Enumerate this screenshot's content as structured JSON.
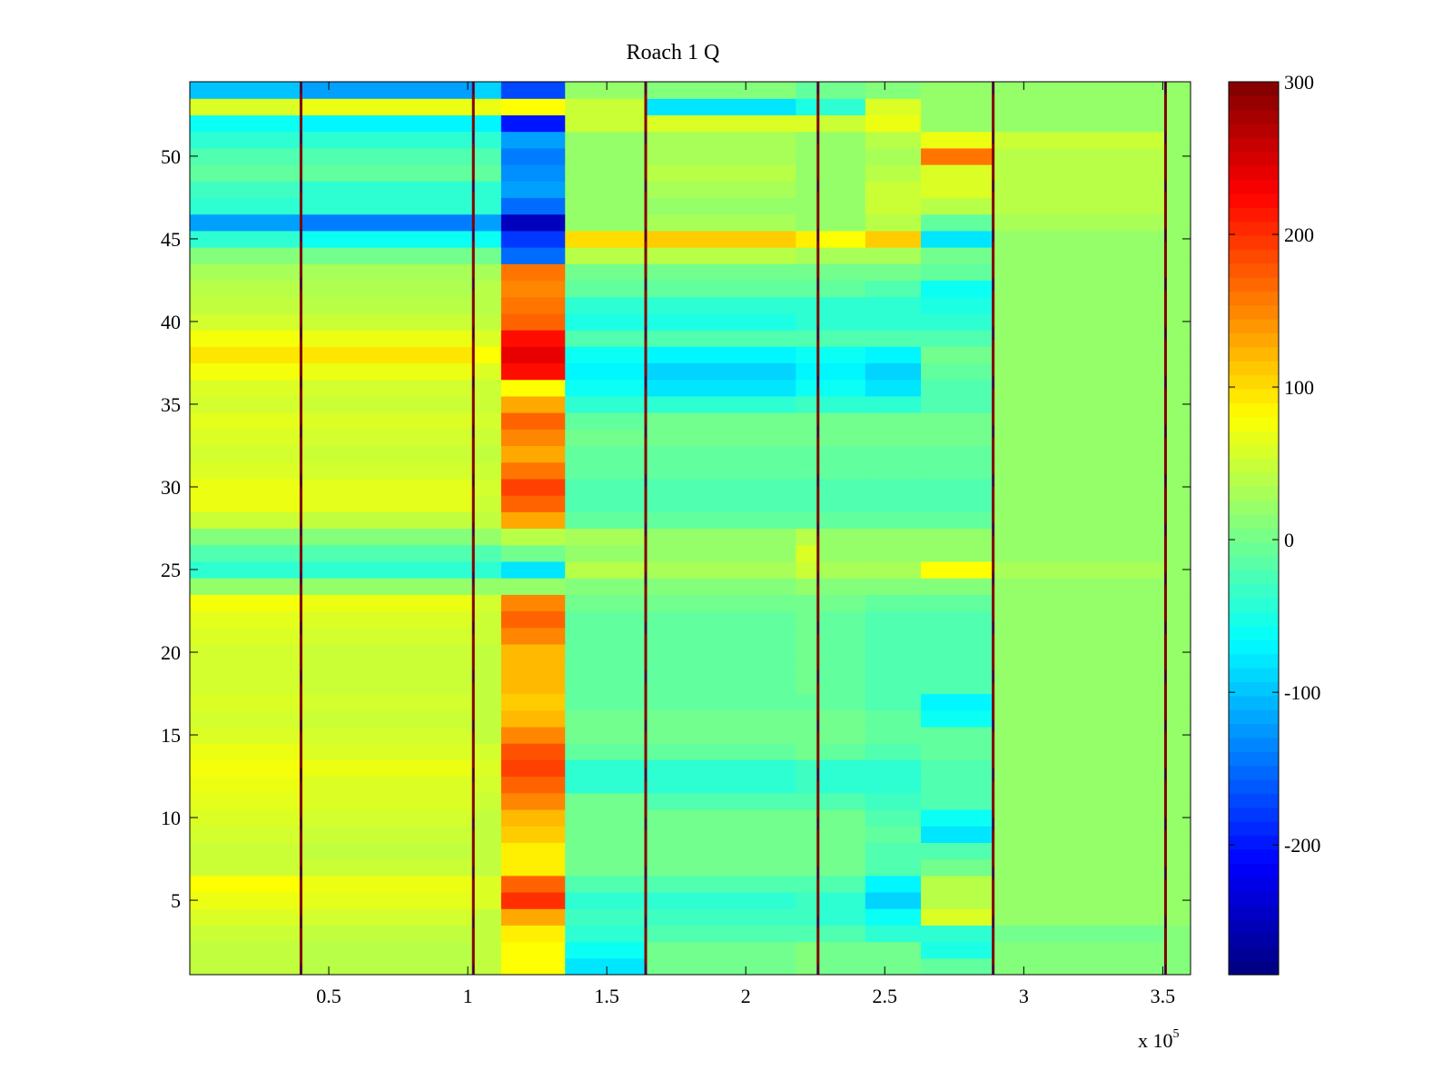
{
  "chart_data": {
    "type": "heatmap",
    "title": "Roach 1 Q",
    "xlabel": "",
    "ylabel": "",
    "x_multiplier": {
      "base": "x 10",
      "exponent": "5"
    },
    "xlim": [
      0,
      360000
    ],
    "ylim": [
      0.5,
      54.5
    ],
    "x_ticks": [
      {
        "value": 50000,
        "label": "0.5"
      },
      {
        "value": 100000,
        "label": "1"
      },
      {
        "value": 150000,
        "label": "1.5"
      },
      {
        "value": 200000,
        "label": "2"
      },
      {
        "value": 250000,
        "label": "2.5"
      },
      {
        "value": 300000,
        "label": "3"
      },
      {
        "value": 350000,
        "label": "3.5"
      }
    ],
    "y_ticks": [
      {
        "value": 5,
        "label": "5"
      },
      {
        "value": 10,
        "label": "10"
      },
      {
        "value": 15,
        "label": "15"
      },
      {
        "value": 20,
        "label": "20"
      },
      {
        "value": 25,
        "label": "25"
      },
      {
        "value": 30,
        "label": "30"
      },
      {
        "value": 35,
        "label": "35"
      },
      {
        "value": 40,
        "label": "40"
      },
      {
        "value": 45,
        "label": "45"
      },
      {
        "value": 50,
        "label": "50"
      }
    ],
    "colorbar": {
      "colormap": "jet",
      "clim": [
        -285,
        300
      ],
      "ticks": [
        {
          "value": 300,
          "label": "300"
        },
        {
          "value": 200,
          "label": "200"
        },
        {
          "value": 100,
          "label": "100"
        },
        {
          "value": 0,
          "label": "0"
        },
        {
          "value": -100,
          "label": "-100"
        },
        {
          "value": -200,
          "label": "-200"
        }
      ]
    },
    "segments": [
      {
        "x_start": 0,
        "x_end": 40000
      },
      {
        "x_start": 40000,
        "x_end": 102000
      },
      {
        "x_start": 102000,
        "x_end": 112000
      },
      {
        "x_start": 112000,
        "x_end": 135000
      },
      {
        "x_start": 135000,
        "x_end": 164000
      },
      {
        "x_start": 164000,
        "x_end": 218000
      },
      {
        "x_start": 218000,
        "x_end": 226000
      },
      {
        "x_start": 226000,
        "x_end": 243000
      },
      {
        "x_start": 243000,
        "x_end": 263000
      },
      {
        "x_start": 263000,
        "x_end": 289000
      },
      {
        "x_start": 289000,
        "x_end": 351000
      },
      {
        "x_start": 351000,
        "x_end": 360000
      }
    ],
    "row_values": [
      [
        45,
        40,
        45,
        80,
        -80,
        0,
        10,
        0,
        0,
        -10,
        10,
        10
      ],
      [
        45,
        40,
        45,
        80,
        -60,
        0,
        10,
        0,
        0,
        -50,
        10,
        10
      ],
      [
        50,
        45,
        45,
        90,
        -40,
        -20,
        -20,
        -20,
        -40,
        -40,
        0,
        10
      ],
      [
        60,
        55,
        45,
        130,
        -30,
        -30,
        -30,
        -40,
        -60,
        60,
        20,
        20
      ],
      [
        70,
        65,
        60,
        200,
        -40,
        -40,
        -30,
        -40,
        -90,
        40,
        20,
        20
      ],
      [
        80,
        70,
        60,
        170,
        -20,
        -20,
        -20,
        -20,
        -70,
        40,
        20,
        20
      ],
      [
        50,
        50,
        45,
        90,
        0,
        0,
        0,
        0,
        -20,
        0,
        20,
        20
      ],
      [
        50,
        45,
        45,
        90,
        0,
        0,
        0,
        0,
        -20,
        -20,
        20,
        20
      ],
      [
        55,
        50,
        45,
        110,
        0,
        0,
        0,
        0,
        -10,
        -80,
        20,
        20
      ],
      [
        60,
        55,
        45,
        120,
        0,
        0,
        0,
        0,
        -20,
        -60,
        20,
        20
      ],
      [
        65,
        60,
        50,
        150,
        0,
        -20,
        -20,
        -20,
        -30,
        -20,
        20,
        20
      ],
      [
        70,
        60,
        55,
        170,
        -40,
        -40,
        -30,
        -40,
        -40,
        -20,
        20,
        20
      ],
      [
        75,
        70,
        60,
        190,
        -40,
        -40,
        -30,
        -40,
        -40,
        -20,
        20,
        20
      ],
      [
        70,
        60,
        55,
        180,
        -10,
        -10,
        0,
        -10,
        -20,
        -10,
        20,
        20
      ],
      [
        60,
        55,
        45,
        150,
        0,
        0,
        0,
        0,
        -10,
        -10,
        20,
        20
      ],
      [
        55,
        50,
        45,
        120,
        0,
        0,
        0,
        0,
        -10,
        -60,
        20,
        20
      ],
      [
        60,
        55,
        45,
        110,
        -10,
        -10,
        -10,
        -10,
        -20,
        -70,
        20,
        20
      ],
      [
        55,
        50,
        45,
        120,
        -10,
        -10,
        0,
        -10,
        -20,
        -20,
        20,
        20
      ],
      [
        55,
        50,
        45,
        120,
        -10,
        -10,
        0,
        -10,
        -20,
        -20,
        20,
        20
      ],
      [
        55,
        50,
        45,
        120,
        -10,
        -10,
        0,
        -10,
        -20,
        -20,
        20,
        20
      ],
      [
        60,
        55,
        50,
        150,
        -10,
        -10,
        0,
        -10,
        -20,
        -20,
        20,
        20
      ],
      [
        65,
        60,
        50,
        170,
        -10,
        -10,
        0,
        -10,
        -20,
        -20,
        20,
        20
      ],
      [
        75,
        70,
        55,
        150,
        0,
        0,
        0,
        0,
        -10,
        -10,
        20,
        20
      ],
      [
        20,
        20,
        20,
        20,
        10,
        10,
        20,
        10,
        10,
        10,
        20,
        20
      ],
      [
        -40,
        -40,
        -40,
        -80,
        40,
        30,
        50,
        30,
        30,
        80,
        30,
        20
      ],
      [
        -20,
        -20,
        -20,
        0,
        20,
        20,
        60,
        20,
        20,
        20,
        20,
        20
      ],
      [
        10,
        10,
        20,
        40,
        30,
        20,
        40,
        20,
        20,
        20,
        20,
        20
      ],
      [
        50,
        45,
        45,
        130,
        -10,
        -10,
        -10,
        -10,
        -10,
        -10,
        20,
        20
      ],
      [
        70,
        65,
        50,
        170,
        -20,
        -20,
        -20,
        -20,
        -20,
        -20,
        20,
        20
      ],
      [
        70,
        65,
        55,
        190,
        -20,
        -20,
        -20,
        -20,
        -20,
        -20,
        20,
        20
      ],
      [
        60,
        55,
        50,
        160,
        -10,
        -10,
        -10,
        -10,
        -10,
        -10,
        20,
        20
      ],
      [
        55,
        50,
        45,
        130,
        -10,
        -10,
        -10,
        -10,
        -10,
        -10,
        20,
        20
      ],
      [
        60,
        55,
        50,
        150,
        0,
        0,
        0,
        0,
        0,
        0,
        20,
        20
      ],
      [
        65,
        60,
        55,
        170,
        -10,
        0,
        0,
        0,
        0,
        0,
        20,
        20
      ],
      [
        55,
        50,
        50,
        130,
        -40,
        -40,
        -30,
        -40,
        -40,
        -20,
        20,
        20
      ],
      [
        60,
        55,
        50,
        80,
        -60,
        -80,
        -60,
        -60,
        -80,
        -20,
        20,
        20
      ],
      [
        75,
        70,
        60,
        220,
        -70,
        -90,
        -70,
        -70,
        -90,
        -10,
        20,
        20
      ],
      [
        95,
        95,
        80,
        240,
        -60,
        -70,
        -60,
        -60,
        -70,
        0,
        20,
        20
      ],
      [
        75,
        70,
        60,
        220,
        -20,
        -20,
        -20,
        -20,
        -20,
        -20,
        20,
        20
      ],
      [
        55,
        50,
        45,
        170,
        -50,
        -50,
        -40,
        -40,
        -40,
        -40,
        20,
        20
      ],
      [
        45,
        40,
        40,
        160,
        -40,
        -40,
        -40,
        -40,
        -40,
        -50,
        20,
        20
      ],
      [
        40,
        35,
        40,
        150,
        -10,
        -10,
        -10,
        -10,
        -20,
        -60,
        20,
        20
      ],
      [
        30,
        30,
        30,
        160,
        0,
        0,
        0,
        0,
        0,
        -10,
        20,
        20
      ],
      [
        10,
        0,
        0,
        -150,
        40,
        40,
        30,
        30,
        30,
        0,
        20,
        20
      ],
      [
        -40,
        -60,
        -60,
        -180,
        100,
        110,
        90,
        80,
        110,
        -80,
        20,
        20
      ],
      [
        -120,
        -140,
        -120,
        -250,
        20,
        30,
        20,
        20,
        40,
        -10,
        30,
        20
      ],
      [
        -40,
        -40,
        -40,
        -150,
        20,
        20,
        20,
        20,
        50,
        40,
        40,
        20
      ],
      [
        -30,
        -40,
        -40,
        -120,
        20,
        30,
        20,
        20,
        50,
        60,
        40,
        20
      ],
      [
        -10,
        -10,
        -10,
        -130,
        20,
        40,
        20,
        20,
        40,
        60,
        40,
        20
      ],
      [
        -20,
        -20,
        -20,
        -140,
        20,
        30,
        20,
        20,
        30,
        160,
        40,
        20
      ],
      [
        -40,
        -40,
        -40,
        -120,
        20,
        30,
        20,
        20,
        40,
        70,
        50,
        20
      ],
      [
        -60,
        -70,
        -70,
        -200,
        50,
        60,
        60,
        50,
        70,
        20,
        20,
        20
      ],
      [
        60,
        70,
        70,
        80,
        50,
        -80,
        -50,
        -40,
        60,
        20,
        20,
        20
      ],
      [
        -100,
        -120,
        -90,
        -170,
        20,
        10,
        -10,
        0,
        10,
        20,
        20,
        20
      ]
    ],
    "markers": [
      {
        "x": 40000,
        "color": "#7f0000"
      },
      {
        "x": 102000,
        "color": "#7f0000"
      },
      {
        "x": 164000,
        "color": "#7f0000"
      },
      {
        "x": 226000,
        "color": "#7f0000"
      },
      {
        "x": 289000,
        "color": "#7f0000"
      },
      {
        "x": 351000,
        "color": "#7f0000"
      }
    ],
    "marker_accent_color": "#00008f"
  }
}
